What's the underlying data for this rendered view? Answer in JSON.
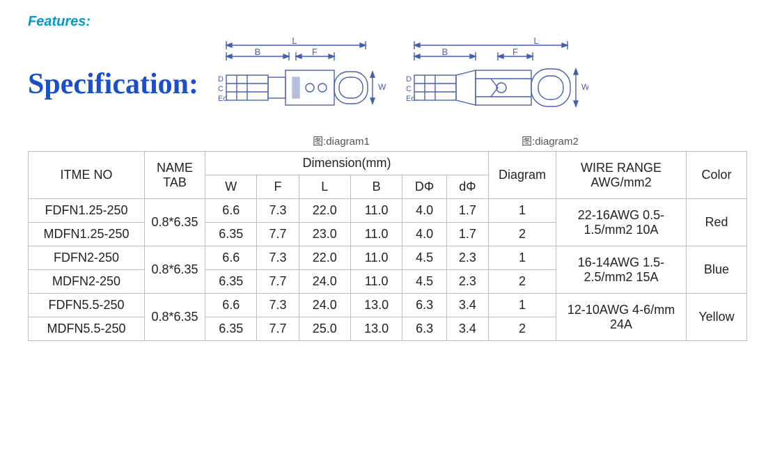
{
  "labels": {
    "features": "Features:",
    "specification": "Specification:",
    "diag1": "图:diagram1",
    "diag2": "图:diagram2"
  },
  "diagram": {
    "dims": {
      "L": "L",
      "B": "B",
      "F": "F",
      "D": "D",
      "C": "C",
      "Ed": "Ed",
      "W": "W"
    },
    "stroke": "#4a5ea8",
    "stroke_width": 1.4
  },
  "table": {
    "headers": {
      "item": "ITME NO",
      "name": "NAME TAB",
      "dimension": "Dimension(mm)",
      "W": "W",
      "F": "F",
      "L": "L",
      "B": "B",
      "DPhi": "DΦ",
      "dphi": "dΦ",
      "diagram": "Diagram",
      "wire": "WIRE RANGE AWG/mm2",
      "color": "Color"
    },
    "groups": [
      {
        "name_tab": "0.8*6.35",
        "wire": "22-16AWG 0.5-1.5/mm2 10A",
        "color": "Red",
        "rows": [
          {
            "item": "FDFN1.25-250",
            "W": "6.6",
            "F": "7.3",
            "L": "22.0",
            "B": "11.0",
            "DPhi": "4.0",
            "dphi": "1.7",
            "diag": "1"
          },
          {
            "item": "MDFN1.25-250",
            "W": "6.35",
            "F": "7.7",
            "L": "23.0",
            "B": "11.0",
            "DPhi": "4.0",
            "dphi": "1.7",
            "diag": "2"
          }
        ]
      },
      {
        "name_tab": "0.8*6.35",
        "wire": "16-14AWG 1.5-2.5/mm2 15A",
        "color": "Blue",
        "rows": [
          {
            "item": "FDFN2-250",
            "W": "6.6",
            "F": "7.3",
            "L": "22.0",
            "B": "11.0",
            "DPhi": "4.5",
            "dphi": "2.3",
            "diag": "1"
          },
          {
            "item": "MDFN2-250",
            "W": "6.35",
            "F": "7.7",
            "L": "24.0",
            "B": "11.0",
            "DPhi": "4.5",
            "dphi": "2.3",
            "diag": "2"
          }
        ]
      },
      {
        "name_tab": "0.8*6.35",
        "wire": "12-10AWG 4-6/mm 24A",
        "color": "Yellow",
        "rows": [
          {
            "item": "FDFN5.5-250",
            "W": "6.6",
            "F": "7.3",
            "L": "24.0",
            "B": "13.0",
            "DPhi": "6.3",
            "dphi": "3.4",
            "diag": "1"
          },
          {
            "item": "MDFN5.5-250",
            "W": "6.35",
            "F": "7.7",
            "L": "25.0",
            "B": "13.0",
            "DPhi": "6.3",
            "dphi": "3.4",
            "diag": "2"
          }
        ]
      }
    ]
  }
}
